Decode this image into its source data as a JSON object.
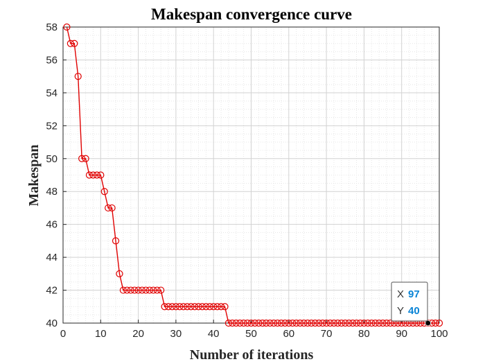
{
  "chart_data": {
    "type": "line",
    "title": "Makespan convergence curve",
    "xlabel": "Number of iterations",
    "ylabel": "Makespan",
    "xlim": [
      0,
      100
    ],
    "ylim": [
      40,
      58
    ],
    "xticks": [
      0,
      10,
      20,
      30,
      40,
      50,
      60,
      70,
      80,
      90,
      100
    ],
    "yticks": [
      40,
      42,
      44,
      46,
      48,
      50,
      52,
      54,
      56,
      58
    ],
    "grid": true,
    "minor_grid": true,
    "marker": "circle",
    "line_color": "#e00000",
    "x": [
      1,
      2,
      3,
      4,
      5,
      6,
      7,
      8,
      9,
      10,
      11,
      12,
      13,
      14,
      15,
      16,
      17,
      18,
      19,
      20,
      21,
      22,
      23,
      24,
      25,
      26,
      27,
      28,
      29,
      30,
      31,
      32,
      33,
      34,
      35,
      36,
      37,
      38,
      39,
      40,
      41,
      42,
      43,
      44,
      45,
      46,
      47,
      48,
      49,
      50,
      51,
      52,
      53,
      54,
      55,
      56,
      57,
      58,
      59,
      60,
      61,
      62,
      63,
      64,
      65,
      66,
      67,
      68,
      69,
      70,
      71,
      72,
      73,
      74,
      75,
      76,
      77,
      78,
      79,
      80,
      81,
      82,
      83,
      84,
      85,
      86,
      87,
      88,
      89,
      90,
      91,
      92,
      93,
      94,
      95,
      96,
      97,
      98,
      99,
      100
    ],
    "values": [
      58,
      57,
      57,
      55,
      50,
      50,
      49,
      49,
      49,
      49,
      48,
      47,
      47,
      45,
      43,
      42,
      42,
      42,
      42,
      42,
      42,
      42,
      42,
      42,
      42,
      42,
      41,
      41,
      41,
      41,
      41,
      41,
      41,
      41,
      41,
      41,
      41,
      41,
      41,
      41,
      41,
      41,
      41,
      40,
      40,
      40,
      40,
      40,
      40,
      40,
      40,
      40,
      40,
      40,
      40,
      40,
      40,
      40,
      40,
      40,
      40,
      40,
      40,
      40,
      40,
      40,
      40,
      40,
      40,
      40,
      40,
      40,
      40,
      40,
      40,
      40,
      40,
      40,
      40,
      40,
      40,
      40,
      40,
      40,
      40,
      40,
      40,
      40,
      40,
      40,
      40,
      40,
      40,
      40,
      40,
      40,
      40,
      40,
      40,
      40
    ],
    "datatip": {
      "x_key": "X",
      "x_value": "97",
      "y_key": "Y",
      "y_value": "40",
      "point_x": 97,
      "point_y": 40
    }
  }
}
